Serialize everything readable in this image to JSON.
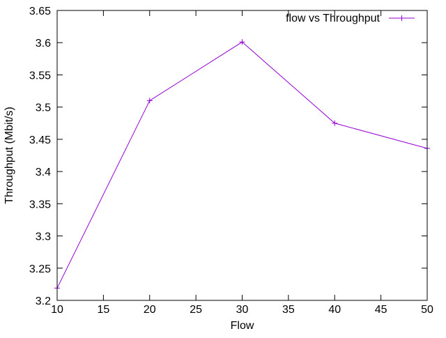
{
  "chart_data": {
    "type": "line",
    "title": "",
    "xlabel": "Flow",
    "ylabel": "Throughput (Mbit/s)",
    "xlim": [
      10,
      50
    ],
    "ylim": [
      3.2,
      3.65
    ],
    "xticks": [
      10,
      15,
      20,
      25,
      30,
      35,
      40,
      45,
      50
    ],
    "yticks": [
      3.2,
      3.25,
      3.3,
      3.35,
      3.4,
      3.45,
      3.5,
      3.55,
      3.6,
      3.65
    ],
    "xtick_labels": [
      "10",
      "15",
      "20",
      "25",
      "30",
      "35",
      "40",
      "45",
      "50"
    ],
    "ytick_labels": [
      "3.2",
      "3.25",
      "3.3",
      "3.35",
      "3.4",
      "3.45",
      "3.5",
      "3.55",
      "3.6",
      "3.65"
    ],
    "grid": false,
    "legend_position": "top-right",
    "series": [
      {
        "name": "flow vs Throughput",
        "color": "#9400d3",
        "marker": "plus",
        "x": [
          10,
          20,
          30,
          40,
          50
        ],
        "y": [
          3.219,
          3.51,
          3.601,
          3.475,
          3.436
        ]
      }
    ]
  }
}
